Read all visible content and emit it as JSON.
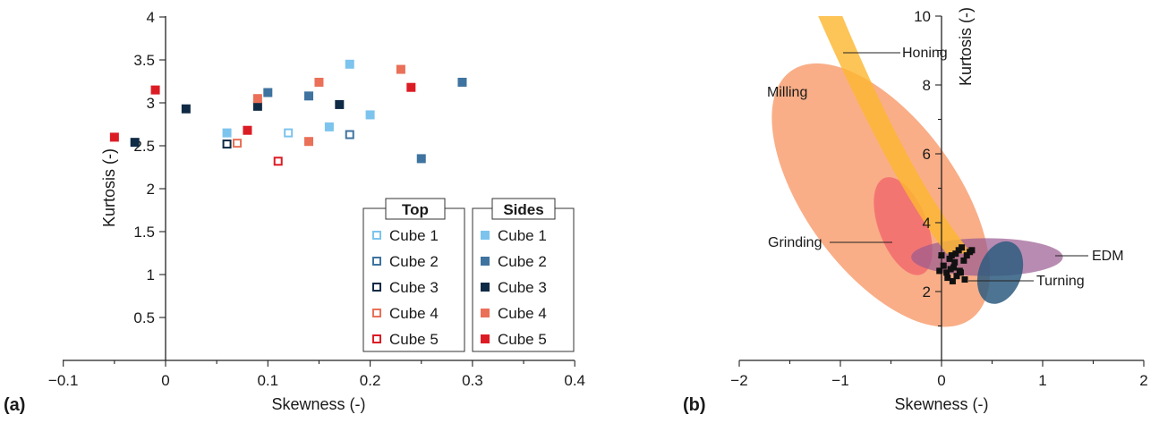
{
  "panels": {
    "a": {
      "tag": "(a)"
    },
    "b": {
      "tag": "(b)"
    }
  },
  "chart_data": [
    {
      "type": "scatter",
      "xlabel": "Skewness (-)",
      "ylabel": "Kurtosis (-)",
      "xlim": [
        -0.1,
        0.4
      ],
      "ylim": [
        0,
        4
      ],
      "xticks": [
        -0.1,
        0,
        0.1,
        0.2,
        0.3,
        0.4
      ],
      "xtick_labels": [
        "−0.1",
        "0",
        "0.1",
        "0.2",
        "0.3",
        "0.4"
      ],
      "yticks": [
        0.5,
        1,
        1.5,
        2,
        2.5,
        3,
        3.5,
        4
      ],
      "ytick_labels": [
        "0.5",
        "1",
        "1.5",
        "2",
        "2.5",
        "3",
        "3.5",
        "4"
      ],
      "grid": false,
      "legend_groups": [
        {
          "title": "Top",
          "marker": "open-square",
          "entries": [
            "Cube 1",
            "Cube 2",
            "Cube 3",
            "Cube 4",
            "Cube 5"
          ]
        },
        {
          "title": "Sides",
          "marker": "filled-square",
          "entries": [
            "Cube 1",
            "Cube 2",
            "Cube 3",
            "Cube 4",
            "Cube 5"
          ]
        }
      ],
      "colors": {
        "Cube 1": "#7cc4ee",
        "Cube 2": "#3f73a0",
        "Cube 3": "#0f2a45",
        "Cube 4": "#ea7058",
        "Cube 5": "#dc1c24"
      },
      "series": [
        {
          "name": "Cube 1",
          "group": "Top",
          "points": [
            [
              0.12,
              2.65
            ]
          ]
        },
        {
          "name": "Cube 2",
          "group": "Top",
          "points": [
            [
              0.18,
              2.63
            ]
          ]
        },
        {
          "name": "Cube 3",
          "group": "Top",
          "points": [
            [
              0.06,
              2.52
            ]
          ]
        },
        {
          "name": "Cube 4",
          "group": "Top",
          "points": [
            [
              0.07,
              2.53
            ]
          ]
        },
        {
          "name": "Cube 5",
          "group": "Top",
          "points": [
            [
              0.11,
              2.32
            ]
          ]
        },
        {
          "name": "Cube 1",
          "group": "Sides",
          "points": [
            [
              0.06,
              2.65
            ],
            [
              0.16,
              2.72
            ],
            [
              0.18,
              3.45
            ],
            [
              0.2,
              2.86
            ]
          ]
        },
        {
          "name": "Cube 2",
          "group": "Sides",
          "points": [
            [
              0.1,
              3.12
            ],
            [
              0.14,
              3.08
            ],
            [
              0.25,
              2.35
            ],
            [
              0.29,
              3.24
            ]
          ]
        },
        {
          "name": "Cube 3",
          "group": "Sides",
          "points": [
            [
              -0.03,
              2.54
            ],
            [
              0.02,
              2.93
            ],
            [
              0.09,
              2.96
            ],
            [
              0.17,
              2.98
            ]
          ]
        },
        {
          "name": "Cube 4",
          "group": "Sides",
          "points": [
            [
              0.09,
              3.05
            ],
            [
              0.14,
              2.55
            ],
            [
              0.15,
              3.24
            ],
            [
              0.23,
              3.39
            ]
          ]
        },
        {
          "name": "Cube 5",
          "group": "Sides",
          "points": [
            [
              -0.05,
              2.6
            ],
            [
              -0.01,
              3.15
            ],
            [
              0.08,
              2.68
            ],
            [
              0.24,
              3.18
            ]
          ]
        }
      ]
    },
    {
      "type": "scatter",
      "xlabel": "Skewness (-)",
      "ylabel": "Kurtosis (-)",
      "xlim": [
        -2,
        2
      ],
      "ylim": [
        0,
        10
      ],
      "xticks": [
        -2,
        -1,
        0,
        1,
        2
      ],
      "xtick_labels": [
        "−2",
        "−1",
        "0",
        "1",
        "2"
      ],
      "yticks": [
        2,
        4,
        6,
        8,
        10
      ],
      "ytick_labels": [
        "2",
        "4",
        "6",
        "8",
        "10"
      ],
      "grid": false,
      "regions": [
        {
          "label": "Milling",
          "color": "#f7935f",
          "opacity": 0.75,
          "shape": "ellipse",
          "center": [
            -0.6,
            4.8
          ],
          "semi_axes": [
            0.75,
            4.45
          ],
          "rotation_deg": -36
        },
        {
          "label": "Grinding",
          "color": "#f0626a",
          "opacity": 0.75,
          "shape": "ellipse",
          "center": [
            -0.38,
            3.9
          ],
          "semi_axes": [
            0.24,
            1.5
          ],
          "rotation_deg": -21
        },
        {
          "label": "EDM",
          "color": "#9a5a92",
          "opacity": 0.7,
          "shape": "ellipse",
          "center": [
            0.45,
            3.0
          ],
          "semi_axes": [
            0.75,
            0.55
          ],
          "rotation_deg": 0
        },
        {
          "label": "Turning",
          "color": "#2e5c7f",
          "opacity": 0.85,
          "shape": "ellipse",
          "center": [
            0.58,
            2.55
          ],
          "semi_axes": [
            0.32,
            0.62
          ],
          "rotation_deg": -70
        },
        {
          "label": "Honing",
          "color": "#fcb732",
          "opacity": 0.82,
          "shape": "band",
          "left_edge": [
            [
              -1.22,
              10
            ],
            [
              -0.5,
              5.2
            ],
            [
              0.05,
              3.1
            ]
          ],
          "right_edge": [
            [
              -0.98,
              10
            ],
            [
              -0.3,
              5.2
            ],
            [
              0.3,
              3.1
            ]
          ]
        }
      ],
      "points": [
        [
          0.02,
          2.75
        ],
        [
          0.05,
          2.55
        ],
        [
          0.08,
          2.95
        ],
        [
          0.1,
          3.05
        ],
        [
          0.12,
          2.7
        ],
        [
          0.14,
          3.1
        ],
        [
          0.17,
          3.2
        ],
        [
          0.2,
          3.28
        ],
        [
          0.22,
          2.9
        ],
        [
          0.25,
          3.05
        ],
        [
          0.28,
          3.15
        ],
        [
          0.15,
          2.45
        ],
        [
          0.06,
          2.4
        ],
        [
          0.18,
          2.6
        ],
        [
          0.11,
          2.3
        ],
        [
          0.0,
          3.05
        ],
        [
          -0.02,
          2.6
        ],
        [
          0.23,
          2.35
        ],
        [
          0.09,
          2.65
        ],
        [
          0.13,
          2.85
        ],
        [
          0.3,
          3.2
        ],
        [
          0.19,
          2.55
        ]
      ]
    }
  ]
}
